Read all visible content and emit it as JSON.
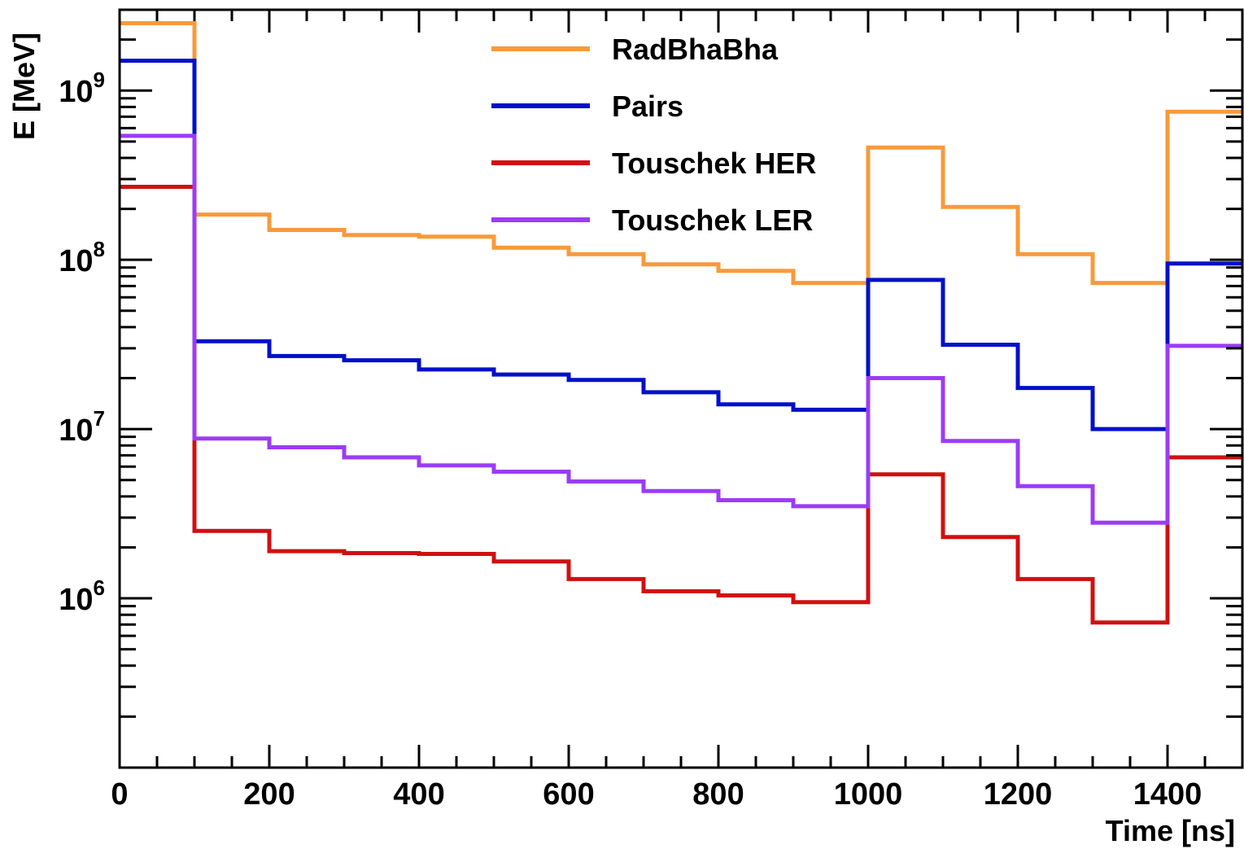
{
  "chart_data": {
    "type": "line",
    "title": "",
    "xlabel": "Time [ns]",
    "ylabel": "E [MeV]",
    "xlim": [
      0,
      1500
    ],
    "ylim": [
      100000,
      3000000000
    ],
    "yscale": "log",
    "grid": false,
    "legend_position": "top-center",
    "bin_edges": [
      0,
      100,
      200,
      300,
      400,
      500,
      600,
      700,
      800,
      900,
      1000,
      1100,
      1200,
      1300,
      1400,
      1500
    ],
    "x_ticks": [
      0,
      200,
      400,
      600,
      800,
      1000,
      1200,
      1400
    ],
    "x_tick_labels": [
      "0",
      "200",
      "400",
      "600",
      "800",
      "1000",
      "1200",
      "1400"
    ],
    "y_ticks": [
      {
        "value": 1000000,
        "base": "10",
        "exp": "6"
      },
      {
        "value": 10000000,
        "base": "10",
        "exp": "7"
      },
      {
        "value": 100000000,
        "base": "10",
        "exp": "8"
      },
      {
        "value": 1000000000,
        "base": "10",
        "exp": "9"
      }
    ],
    "series": [
      {
        "name": "RadBhaBha",
        "color": "#f89a3a",
        "values": [
          2500000000,
          185000000,
          150000000,
          140000000,
          137000000,
          118000000,
          108000000,
          94000000,
          86000000,
          73000000,
          460000000,
          205000000,
          108000000,
          73000000,
          750000000
        ]
      },
      {
        "name": "Pairs",
        "color": "#0010c8",
        "values": [
          1500000000,
          33000000,
          27000000,
          25500000,
          22500000,
          21000000,
          19500000,
          16500000,
          14000000,
          13000000,
          76000000,
          31500000,
          17500000,
          10000000,
          95000000
        ]
      },
      {
        "name": "Touschek HER",
        "color": "#d01010",
        "values": [
          270000000,
          2500000,
          1900000,
          1850000,
          1830000,
          1650000,
          1300000,
          1100000,
          1040000,
          950000,
          5400000,
          2300000,
          1300000,
          720000,
          6800000
        ]
      },
      {
        "name": "Touschek LER",
        "color": "#9b3cf5",
        "values": [
          540000000,
          8800000,
          7800000,
          6800000,
          6100000,
          5600000,
          4900000,
          4300000,
          3800000,
          3500000,
          20000000,
          8500000,
          4600000,
          2800000,
          31000000
        ]
      }
    ]
  }
}
